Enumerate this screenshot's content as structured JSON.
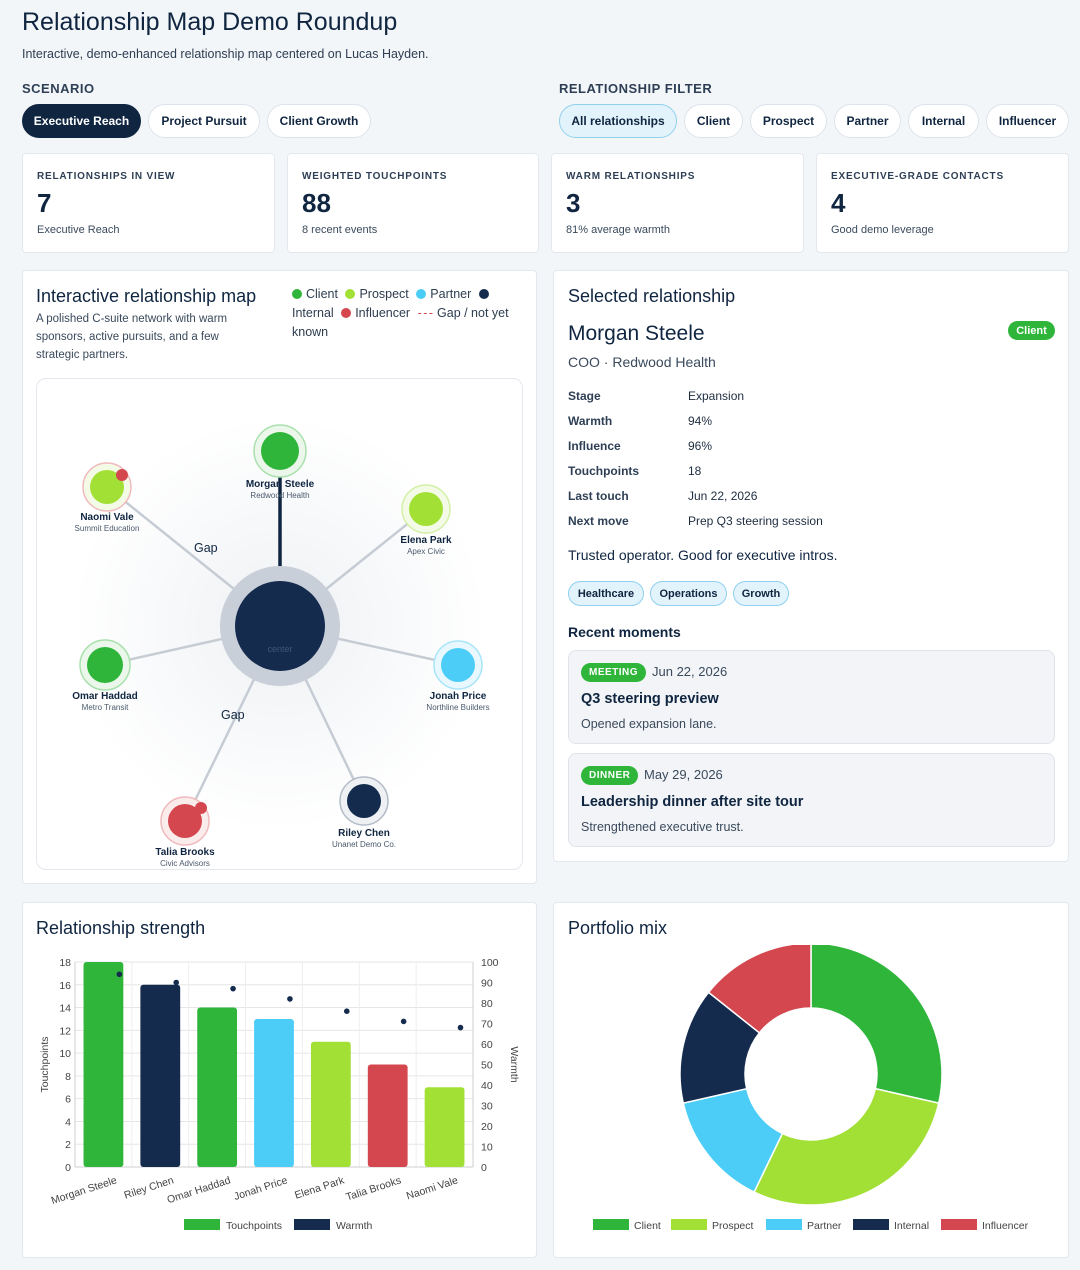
{
  "header": {
    "title": "Relationship Map Demo Roundup",
    "subtitle": "Interactive, demo-enhanced relationship map centered on Lucas Hayden."
  },
  "scenario": {
    "label": "SCENARIO",
    "options": [
      "Executive Reach",
      "Project Pursuit",
      "Client Growth"
    ],
    "selected": "Executive Reach"
  },
  "filter": {
    "label": "RELATIONSHIP FILTER",
    "options": [
      "All relationships",
      "Client",
      "Prospect",
      "Partner",
      "Internal",
      "Influencer"
    ],
    "selected": "All relationships"
  },
  "stats": [
    {
      "label": "RELATIONSHIPS IN VIEW",
      "value": "7",
      "sub": "Executive Reach"
    },
    {
      "label": "WEIGHTED TOUCHPOINTS",
      "value": "88",
      "sub": "8 recent events"
    },
    {
      "label": "WARM RELATIONSHIPS",
      "value": "3",
      "sub": "81% average warmth"
    },
    {
      "label": "EXECUTIVE-GRADE CONTACTS",
      "value": "4",
      "sub": "Good demo leverage"
    }
  ],
  "map": {
    "title": "Interactive relationship map",
    "description": "A polished C-suite network with warm sponsors, active pursuits, and a few strategic partners.",
    "legend": {
      "client": "Client",
      "prospect": "Prospect",
      "partner": "Partner",
      "internal": "Internal",
      "influencer": "Influencer",
      "gap": "Gap / not yet known"
    },
    "center_label": "center",
    "gap_label": "Gap",
    "nodes": [
      {
        "name": "Morgan Steele",
        "org": "Redwood Health",
        "type": "client"
      },
      {
        "name": "Elena Park",
        "org": "Apex Civic",
        "type": "prospect"
      },
      {
        "name": "Jonah Price",
        "org": "Northline Builders",
        "type": "partner"
      },
      {
        "name": "Riley Chen",
        "org": "Unanet Demo Co.",
        "type": "internal"
      },
      {
        "name": "Talia Brooks",
        "org": "Civic Advisors",
        "type": "influencer"
      },
      {
        "name": "Omar Haddad",
        "org": "Metro Transit",
        "type": "client"
      },
      {
        "name": "Naomi Vale",
        "org": "Summit Education",
        "type": "prospect"
      }
    ]
  },
  "selected": {
    "panel_title": "Selected relationship",
    "name": "Morgan Steele",
    "role": "COO · Redwood Health",
    "badge": "Client",
    "fields": [
      {
        "key": "Stage",
        "value": "Expansion"
      },
      {
        "key": "Warmth",
        "value": "94%"
      },
      {
        "key": "Influence",
        "value": "96%"
      },
      {
        "key": "Touchpoints",
        "value": "18"
      },
      {
        "key": "Last touch",
        "value": "Jun 22, 2026"
      },
      {
        "key": "Next move",
        "value": "Prep Q3 steering session"
      }
    ],
    "note": "Trusted operator. Good for executive intros.",
    "tags": [
      "Healthcare",
      "Operations",
      "Growth"
    ],
    "moments_title": "Recent moments",
    "moments": [
      {
        "badge": "MEETING",
        "date": "Jun 22, 2026",
        "title": "Q3 steering preview",
        "desc": "Opened expansion lane."
      },
      {
        "badge": "DINNER",
        "date": "May 29, 2026",
        "title": "Leadership dinner after site tour",
        "desc": "Strengthened executive trust."
      }
    ]
  },
  "colors": {
    "client": "#2fb63a",
    "prospect": "#a3e035",
    "partner": "#4ccdf7",
    "internal": "#142b4e",
    "influencer": "#d5474f",
    "navy": "#0f2540"
  },
  "strength_chart": {
    "title": "Relationship strength"
  },
  "mix_chart": {
    "title": "Portfolio mix"
  },
  "chart_data": [
    {
      "type": "bar",
      "title": "Relationship strength",
      "categories": [
        "Morgan Steele",
        "Riley Chen",
        "Omar Haddad",
        "Jonah Price",
        "Elena Park",
        "Talia Brooks",
        "Naomi Vale"
      ],
      "series": [
        {
          "name": "Touchpoints",
          "values": [
            18,
            16,
            14,
            13,
            11,
            9,
            7
          ]
        },
        {
          "name": "Warmth",
          "values": [
            94,
            90,
            87,
            82,
            76,
            71,
            68
          ]
        }
      ],
      "bar_colors": [
        "#2fb63a",
        "#142b4e",
        "#2fb63a",
        "#4ccdf7",
        "#a3e035",
        "#d5474f",
        "#a3e035"
      ],
      "ylabel": "Touchpoints",
      "y2label": "Warmth",
      "ylim": [
        0,
        18
      ],
      "y2lim": [
        0,
        100
      ],
      "yticks": [
        0,
        2,
        4,
        6,
        8,
        10,
        12,
        14,
        16,
        18
      ],
      "y2ticks": [
        0,
        10,
        20,
        30,
        40,
        50,
        60,
        70,
        80,
        90,
        100
      ],
      "grid": true,
      "legend": "bottom"
    },
    {
      "type": "pie",
      "title": "Portfolio mix",
      "categories": [
        "Client",
        "Prospect",
        "Partner",
        "Internal",
        "Influencer"
      ],
      "values": [
        2,
        2,
        1,
        1,
        1
      ],
      "colors": [
        "#2fb63a",
        "#a3e035",
        "#4ccdf7",
        "#142b4e",
        "#d5474f"
      ],
      "legend": "bottom"
    }
  ]
}
